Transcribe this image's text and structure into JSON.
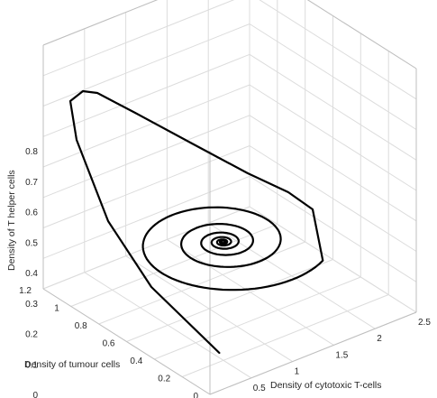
{
  "chart_data": {
    "type": "line",
    "projection": "3d",
    "title": "",
    "xlabel": "Density of tumour cells",
    "ylabel": "Density of cytotoxic T-cells",
    "zlabel": "Density of T helper cells",
    "xlim": [
      0,
      1.2
    ],
    "ylim": [
      0,
      2.5
    ],
    "zlim": [
      0,
      0.8
    ],
    "x_ticks": [
      "0",
      "0.2",
      "0.4",
      "0.6",
      "0.8",
      "1",
      "1.2"
    ],
    "y_ticks": [
      "0",
      "0.5",
      "1",
      "1.5",
      "2",
      "2.5"
    ],
    "z_ticks": [
      "0",
      "0.1",
      "0.2",
      "0.3",
      "0.4",
      "0.5",
      "0.6",
      "0.7",
      "0.8"
    ],
    "grid": true,
    "series": [
      {
        "color": "#000000",
        "description": "spiral trajectory converging to equilibrium",
        "start": {
          "x": 0.2,
          "y": 0.45,
          "z": 0.03
        },
        "equilibrium": {
          "x": 0.56,
          "y": 1.1,
          "z": 0.22
        }
      }
    ]
  }
}
